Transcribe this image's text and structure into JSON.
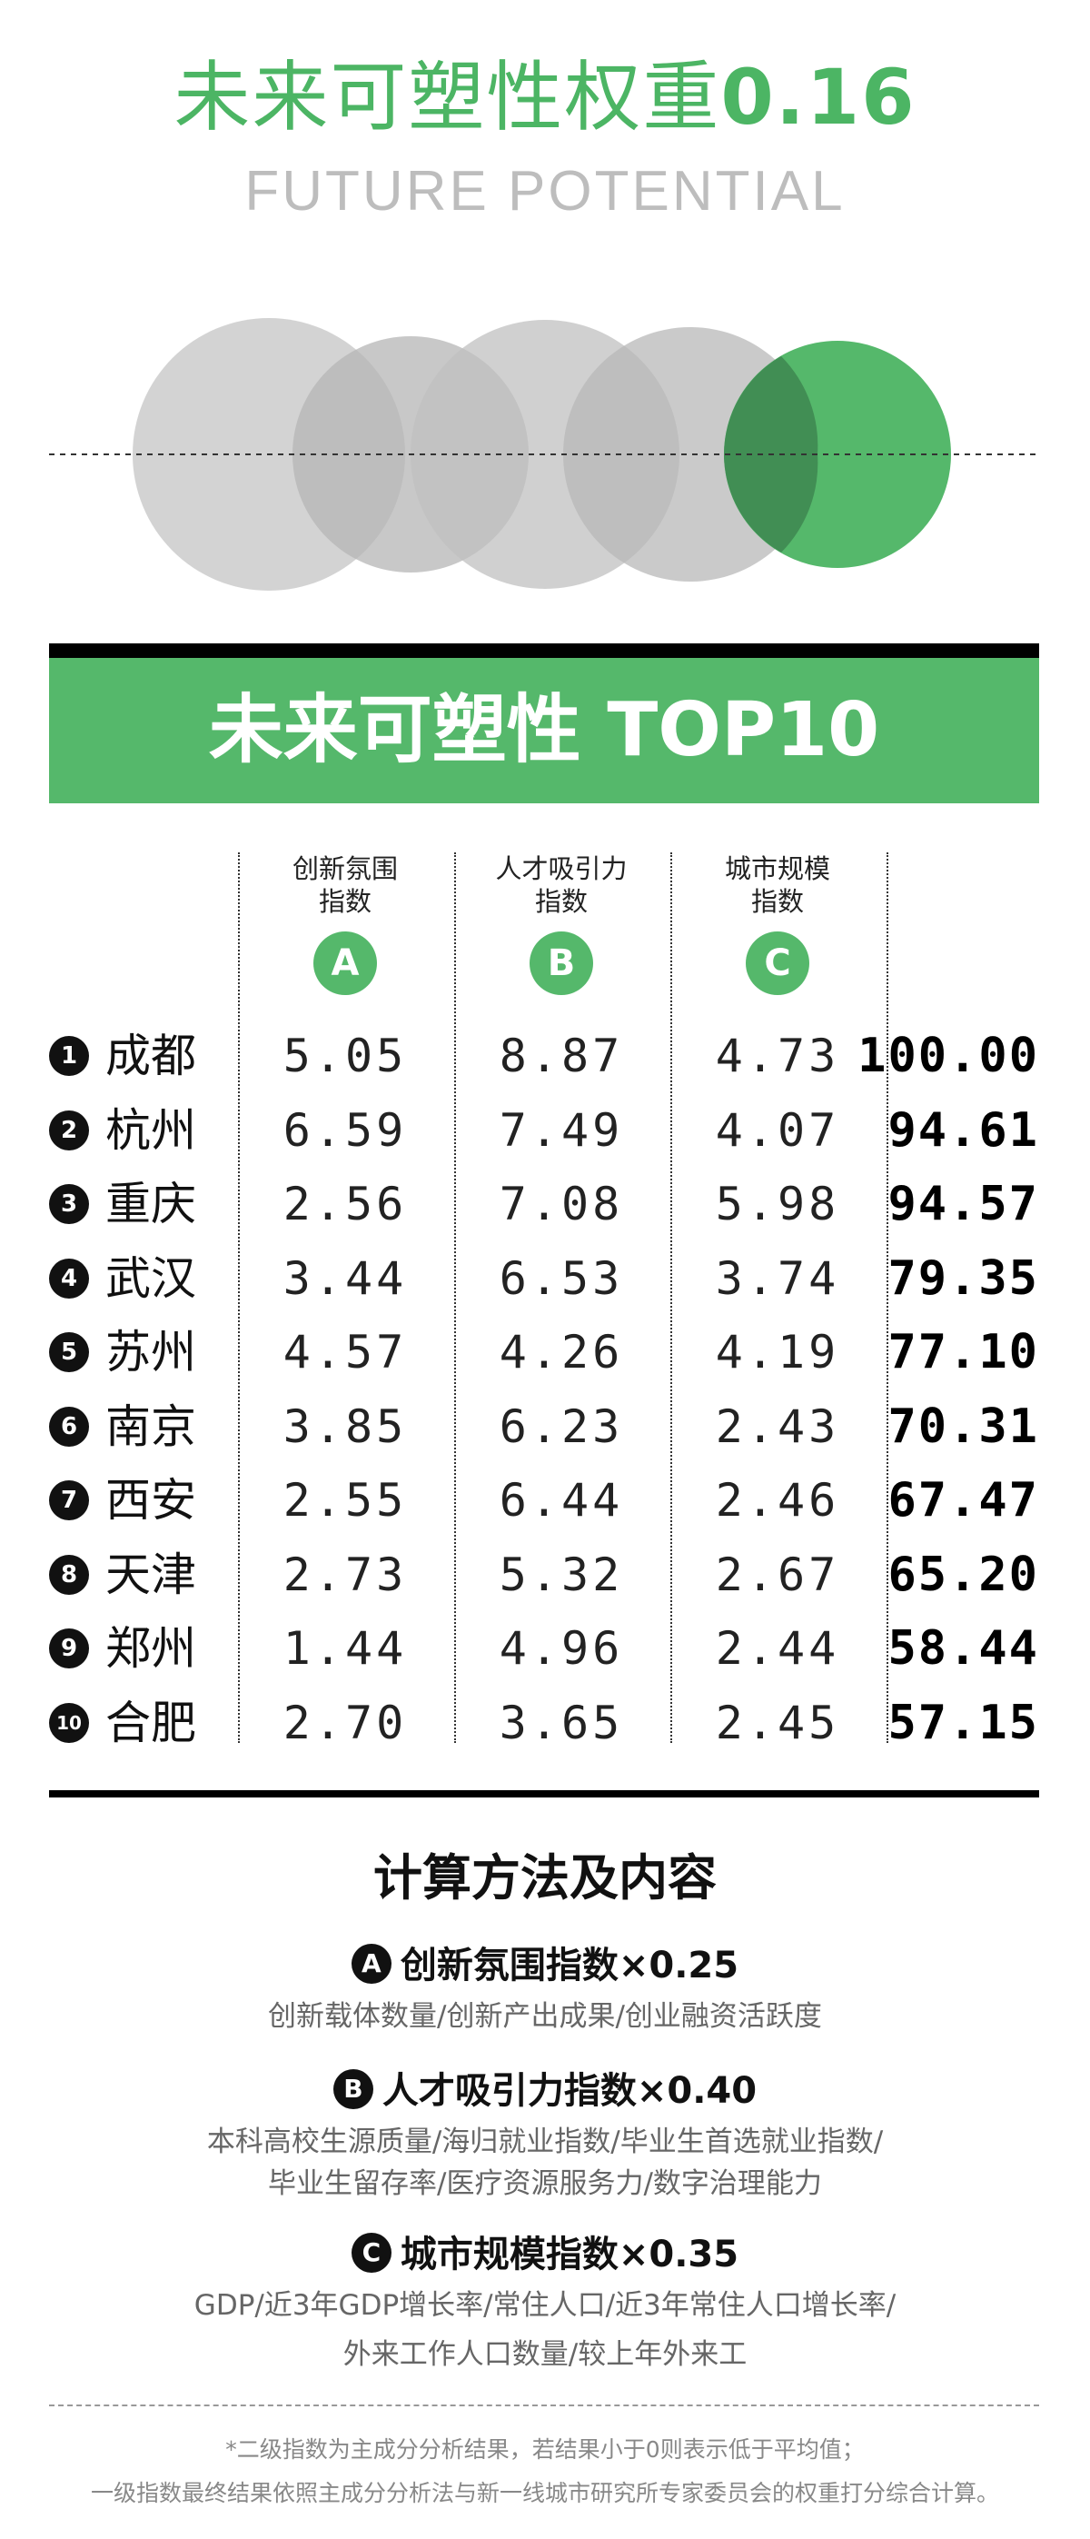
{
  "header": {
    "title": "未来可塑性权重",
    "title_value": "0.16",
    "subtitle": "FUTURE POTENTIAL"
  },
  "colors": {
    "accent": "#55b86b",
    "circle_gray": "#c8c8c8",
    "black": "#000000"
  },
  "banner": {
    "title": "未来可塑性 TOP10"
  },
  "chart_data": {
    "type": "table",
    "columns": [
      {
        "key": "A",
        "label_line1": "创新氛围",
        "label_line2": "指数",
        "badge": "A"
      },
      {
        "key": "B",
        "label_line1": "人才吸引力",
        "label_line2": "指数",
        "badge": "B"
      },
      {
        "key": "C",
        "label_line1": "城市规模",
        "label_line2": "指数",
        "badge": "C"
      }
    ],
    "rows": [
      {
        "rank": "1",
        "city": "成都",
        "A": "5.05",
        "B": "8.87",
        "C": "4.73",
        "total": "100.00"
      },
      {
        "rank": "2",
        "city": "杭州",
        "A": "6.59",
        "B": "7.49",
        "C": "4.07",
        "total": "94.61"
      },
      {
        "rank": "3",
        "city": "重庆",
        "A": "2.56",
        "B": "7.08",
        "C": "5.98",
        "total": "94.57"
      },
      {
        "rank": "4",
        "city": "武汉",
        "A": "3.44",
        "B": "6.53",
        "C": "3.74",
        "total": "79.35"
      },
      {
        "rank": "5",
        "city": "苏州",
        "A": "4.57",
        "B": "4.26",
        "C": "4.19",
        "total": "77.10"
      },
      {
        "rank": "6",
        "city": "南京",
        "A": "3.85",
        "B": "6.23",
        "C": "2.43",
        "total": "70.31"
      },
      {
        "rank": "7",
        "city": "西安",
        "A": "2.55",
        "B": "6.44",
        "C": "2.46",
        "total": "67.47"
      },
      {
        "rank": "8",
        "city": "天津",
        "A": "2.73",
        "B": "5.32",
        "C": "2.67",
        "total": "65.20"
      },
      {
        "rank": "9",
        "city": "郑州",
        "A": "1.44",
        "B": "4.96",
        "C": "2.44",
        "total": "58.44"
      },
      {
        "rank": "10",
        "city": "合肥",
        "A": "2.70",
        "B": "3.65",
        "C": "2.45",
        "total": "57.15"
      }
    ]
  },
  "method": {
    "title": "计算方法及内容",
    "items": [
      {
        "letter": "A",
        "name": "创新氛围指数",
        "weight": "×0.25",
        "desc": [
          "创新载体数量/创新产出成果/创业融资活跃度"
        ]
      },
      {
        "letter": "B",
        "name": "人才吸引力指数",
        "weight": "×0.40",
        "desc": [
          "本科高校生源质量/海归就业指数/毕业生首选就业指数/",
          "毕业生留存率/医疗资源服务力/数字治理能力"
        ]
      },
      {
        "letter": "C",
        "name": "城市规模指数",
        "weight": "×0.35",
        "desc": [
          "GDP/近3年GDP增长率/常住人口/近3年常住人口增长率/",
          "外来工作人口数量/较上年外来工"
        ]
      }
    ]
  },
  "notes": {
    "line1": "*二级指数为主成分分析结果，若结果小于0则表示低于平均值；",
    "line2": "一级指数最终结果依照主成分分析法与新一线城市研究所专家委员会的权重打分综合计算。"
  }
}
